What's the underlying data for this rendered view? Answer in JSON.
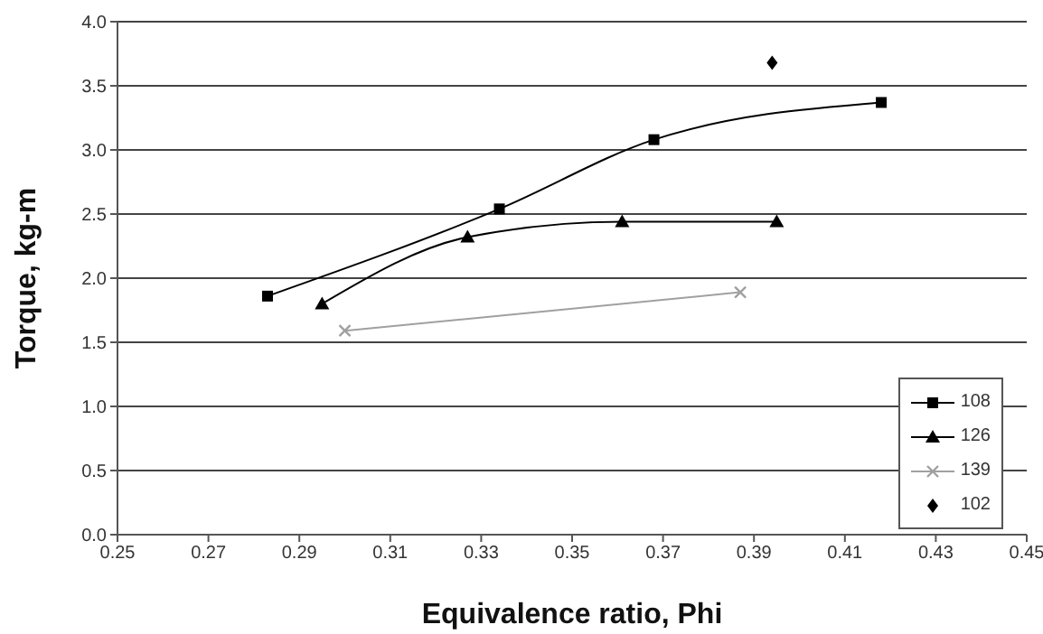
{
  "chart_data": {
    "type": "line",
    "xlabel": "Equivalence ratio, Phi",
    "ylabel": "Torque, kg-m",
    "xlim": [
      0.25,
      0.45
    ],
    "xticks": [
      0.25,
      0.27,
      0.29,
      0.31,
      0.33,
      0.35,
      0.37,
      0.39,
      0.41,
      0.43,
      0.45
    ],
    "ylim": [
      0,
      4
    ],
    "yticks": [
      {
        "value": 0,
        "label": "0.0"
      },
      0.5,
      {
        "value": 1,
        "label": "1.0"
      },
      1.5,
      {
        "value": 2,
        "label": "2.0"
      },
      2.5,
      {
        "value": 3,
        "label": "3.0"
      },
      3.5,
      {
        "value": 4,
        "label": "4.0"
      }
    ],
    "grid": "y",
    "legend": "bottom right",
    "series": [
      {
        "name": "108",
        "color": "#000000",
        "marker": "square",
        "x": [
          0.283,
          0.334,
          0.368,
          0.418
        ],
        "values": [
          1.86,
          2.54,
          3.08,
          3.37
        ]
      },
      {
        "name": "126",
        "color": "#000000",
        "marker": "triangle",
        "x": [
          0.295,
          0.327,
          0.361,
          0.395
        ],
        "values": [
          1.8,
          2.32,
          2.44,
          2.44
        ]
      },
      {
        "name": "139",
        "color": "#a0a0a0",
        "marker": "cross",
        "x": [
          0.3,
          0.387
        ],
        "values": [
          1.59,
          1.89
        ]
      },
      {
        "name": "102",
        "type": "scatter",
        "color": "#000000",
        "marker": "diamond",
        "x": [
          0.394
        ],
        "values": [
          3.68
        ]
      }
    ]
  }
}
